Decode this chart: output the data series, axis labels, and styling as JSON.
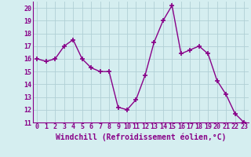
{
  "x": [
    0,
    1,
    2,
    3,
    4,
    5,
    6,
    7,
    8,
    9,
    10,
    11,
    12,
    13,
    14,
    15,
    16,
    17,
    18,
    19,
    20,
    21,
    22,
    23
  ],
  "y": [
    16,
    15.8,
    16,
    17,
    17.5,
    16,
    15.3,
    15,
    15,
    12.2,
    12,
    12.8,
    14.7,
    17.3,
    19,
    20.2,
    16.4,
    16.7,
    17,
    16.4,
    14.3,
    13.2,
    11.7,
    11
  ],
  "line_color": "#880088",
  "marker": "+",
  "marker_size": 4,
  "linewidth": 1.0,
  "bg_color": "#d5eef0",
  "grid_color": "#b0d0d5",
  "xlabel": "Windchill (Refroidissement éolien,°C)",
  "ylim": [
    11,
    20.5
  ],
  "xlim": [
    -0.5,
    23.5
  ],
  "yticks": [
    11,
    12,
    13,
    14,
    15,
    16,
    17,
    18,
    19,
    20
  ],
  "xticks": [
    0,
    1,
    2,
    3,
    4,
    5,
    6,
    7,
    8,
    9,
    10,
    11,
    12,
    13,
    14,
    15,
    16,
    17,
    18,
    19,
    20,
    21,
    22,
    23
  ],
  "tick_fontsize": 6,
  "xlabel_fontsize": 7,
  "spine_color": "#880088"
}
